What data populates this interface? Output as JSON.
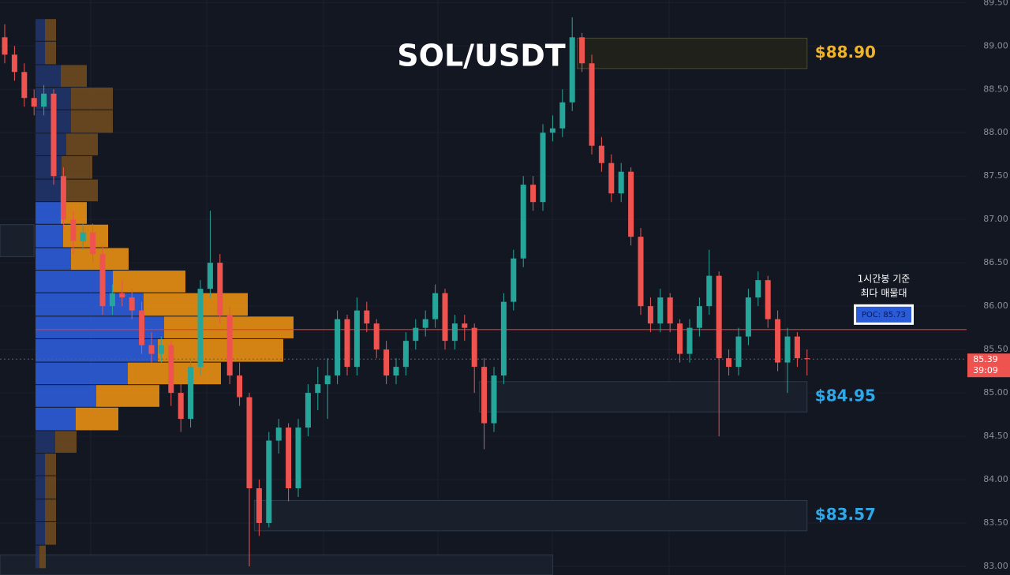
{
  "chart_data": {
    "type": "candlestick",
    "title": "SOL/USDT",
    "ylim": [
      82.9,
      89.53
    ],
    "yticks": [
      {
        "value": 83,
        "label": "83.00"
      },
      {
        "value": 83.5,
        "label": "83.50"
      },
      {
        "value": 84,
        "label": "84.00"
      },
      {
        "value": 84.5,
        "label": "84.50"
      },
      {
        "value": 85,
        "label": "85.00"
      },
      {
        "value": 85.5,
        "label": "85.50"
      },
      {
        "value": 86,
        "label": "86.00"
      },
      {
        "value": 86.5,
        "label": "86.50"
      },
      {
        "value": 87,
        "label": "87.00"
      },
      {
        "value": 87.5,
        "label": "87.50"
      },
      {
        "value": 88,
        "label": "88.00"
      },
      {
        "value": 88.5,
        "label": "88.50"
      },
      {
        "value": 89,
        "label": "89.00"
      },
      {
        "value": 89.5,
        "label": "89.50"
      }
    ],
    "grid": true,
    "up_color": "#26a69a",
    "down_color": "#ef5350",
    "ohlc": [
      [
        89.1,
        89.25,
        88.8,
        88.9
      ],
      [
        88.9,
        89.0,
        88.6,
        88.7
      ],
      [
        88.7,
        88.8,
        88.3,
        88.4
      ],
      [
        88.4,
        88.5,
        88.2,
        88.3
      ],
      [
        88.3,
        88.55,
        88.2,
        88.45
      ],
      [
        88.45,
        88.5,
        87.4,
        87.5
      ],
      [
        87.5,
        87.6,
        86.9,
        87.0
      ],
      [
        87.0,
        87.1,
        86.6,
        86.75
      ],
      [
        86.75,
        86.95,
        86.65,
        86.85
      ],
      [
        86.85,
        86.95,
        86.5,
        86.6
      ],
      [
        86.6,
        86.7,
        85.9,
        86.0
      ],
      [
        86.0,
        86.25,
        85.9,
        86.15
      ],
      [
        86.15,
        86.3,
        86.0,
        86.1
      ],
      [
        86.1,
        86.2,
        85.85,
        85.95
      ],
      [
        85.95,
        86.05,
        85.45,
        85.55
      ],
      [
        85.55,
        85.7,
        85.35,
        85.45
      ],
      [
        85.45,
        85.65,
        85.35,
        85.55
      ],
      [
        85.55,
        85.6,
        84.85,
        85.0
      ],
      [
        85.0,
        85.1,
        84.55,
        84.7
      ],
      [
        84.7,
        85.4,
        84.6,
        85.3
      ],
      [
        85.3,
        86.3,
        85.2,
        86.2
      ],
      [
        86.2,
        87.1,
        86.1,
        86.5
      ],
      [
        86.5,
        86.6,
        85.8,
        85.9
      ],
      [
        85.9,
        86.0,
        85.1,
        85.2
      ],
      [
        85.2,
        85.35,
        84.85,
        84.95
      ],
      [
        84.95,
        85.0,
        83.0,
        83.9
      ],
      [
        83.9,
        84.0,
        83.35,
        83.5
      ],
      [
        83.5,
        84.55,
        83.45,
        84.45
      ],
      [
        84.45,
        84.7,
        84.3,
        84.6
      ],
      [
        84.6,
        84.65,
        83.75,
        83.9
      ],
      [
        83.9,
        84.7,
        83.8,
        84.6
      ],
      [
        84.6,
        85.1,
        84.5,
        85.0
      ],
      [
        85.0,
        85.3,
        84.8,
        85.1
      ],
      [
        85.1,
        85.4,
        84.7,
        85.2
      ],
      [
        85.2,
        85.95,
        85.1,
        85.85
      ],
      [
        85.85,
        85.9,
        85.2,
        85.3
      ],
      [
        85.3,
        86.1,
        85.2,
        85.95
      ],
      [
        85.95,
        86.05,
        85.7,
        85.8
      ],
      [
        85.8,
        85.85,
        85.4,
        85.5
      ],
      [
        85.5,
        85.6,
        85.1,
        85.2
      ],
      [
        85.2,
        85.4,
        85.1,
        85.3
      ],
      [
        85.3,
        85.7,
        85.2,
        85.6
      ],
      [
        85.6,
        85.85,
        85.5,
        85.75
      ],
      [
        85.75,
        85.95,
        85.65,
        85.85
      ],
      [
        85.85,
        86.25,
        85.75,
        86.15
      ],
      [
        86.15,
        86.2,
        85.5,
        85.6
      ],
      [
        85.6,
        85.9,
        85.5,
        85.8
      ],
      [
        85.8,
        85.9,
        85.6,
        85.75
      ],
      [
        85.75,
        85.8,
        85.0,
        85.3
      ],
      [
        85.3,
        85.4,
        84.35,
        84.65
      ],
      [
        84.65,
        85.3,
        84.55,
        85.2
      ],
      [
        85.2,
        86.15,
        85.1,
        86.05
      ],
      [
        86.05,
        86.65,
        85.95,
        86.55
      ],
      [
        86.55,
        87.5,
        86.45,
        87.4
      ],
      [
        87.4,
        87.5,
        87.1,
        87.2
      ],
      [
        87.2,
        88.1,
        87.1,
        88.0
      ],
      [
        88.0,
        88.2,
        87.9,
        88.05
      ],
      [
        88.05,
        88.5,
        87.95,
        88.35
      ],
      [
        88.35,
        89.33,
        88.25,
        89.1
      ],
      [
        89.1,
        89.15,
        88.7,
        88.8
      ],
      [
        88.8,
        88.9,
        87.75,
        87.85
      ],
      [
        87.85,
        87.95,
        87.55,
        87.65
      ],
      [
        87.65,
        87.75,
        87.2,
        87.3
      ],
      [
        87.3,
        87.65,
        87.2,
        87.55
      ],
      [
        87.55,
        87.6,
        86.7,
        86.8
      ],
      [
        86.8,
        86.9,
        85.9,
        86.0
      ],
      [
        86.0,
        86.1,
        85.7,
        85.8
      ],
      [
        85.8,
        86.2,
        85.7,
        86.1
      ],
      [
        86.1,
        86.15,
        85.7,
        85.8
      ],
      [
        85.8,
        85.85,
        85.35,
        85.45
      ],
      [
        85.45,
        85.85,
        85.35,
        85.75
      ],
      [
        85.75,
        86.1,
        85.65,
        86.0
      ],
      [
        86.0,
        86.65,
        85.9,
        86.35
      ],
      [
        86.35,
        86.4,
        84.5,
        85.4
      ],
      [
        85.4,
        85.5,
        85.2,
        85.3
      ],
      [
        85.3,
        85.75,
        85.2,
        85.65
      ],
      [
        85.65,
        86.2,
        85.55,
        86.1
      ],
      [
        86.1,
        86.4,
        86.0,
        86.3
      ],
      [
        86.3,
        86.35,
        85.75,
        85.85
      ],
      [
        85.85,
        85.95,
        85.25,
        85.35
      ],
      [
        85.35,
        85.75,
        85.0,
        85.65
      ],
      [
        85.65,
        85.7,
        85.3,
        85.4
      ],
      [
        85.4,
        85.5,
        85.2,
        85.39
      ]
    ],
    "volume_profile": {
      "levels": [
        89.31,
        89.05,
        88.78,
        88.52,
        88.26,
        87.99,
        87.73,
        87.46,
        87.2,
        86.94,
        86.67,
        86.41,
        86.15,
        85.88,
        85.62,
        85.35,
        85.09,
        84.83,
        84.56,
        84.3,
        84.04,
        83.77,
        83.51,
        83.24
      ],
      "buy": [
        12,
        12,
        32,
        45,
        45,
        39,
        33,
        37,
        32,
        35,
        45,
        98,
        137,
        163,
        155,
        117,
        77,
        51,
        25,
        12,
        12,
        12,
        12,
        5
      ],
      "sell": [
        14,
        14,
        33,
        53,
        53,
        40,
        39,
        42,
        33,
        57,
        73,
        92,
        132,
        164,
        159,
        118,
        80,
        54,
        27,
        14,
        14,
        14,
        14,
        8
      ],
      "value_area_rows": [
        8,
        17
      ],
      "buy_color": "#2b5bd6",
      "sell_color": "#e38d12",
      "dim_buy_color": "#1f3468",
      "dim_sell_color": "#6b4a1f"
    },
    "zones": [
      {
        "top": 89.09,
        "bottom": 88.74,
        "start": 59,
        "end": 82,
        "label": "$88.90",
        "label_color": "#f0b429",
        "fill": "#1f211a",
        "border": "#4a4a38"
      },
      {
        "top": 85.13,
        "bottom": 84.78,
        "start": 49,
        "end": 82,
        "label": "$84.95",
        "label_color": "#2ea8e8",
        "fill": "#19202c",
        "border": "#2e3a4a"
      },
      {
        "top": 83.76,
        "bottom": 83.41,
        "start": 26,
        "end": 82,
        "label": "$83.57",
        "label_color": "#2ea8e8",
        "fill": "#19202c",
        "border": "#2e3a4a"
      },
      {
        "top": 83.13,
        "bottom": 82.9,
        "start": 0,
        "end": 56,
        "fill": "#19202c",
        "border": "#2e3a4a"
      },
      {
        "top": 86.94,
        "bottom": 86.57,
        "start": 0,
        "end": 3,
        "fill": "#19202c",
        "border": "#2e3a4a"
      }
    ],
    "poc": {
      "value": 85.73,
      "label": "POC: 85.73",
      "color": "#e53935"
    },
    "annotation": [
      "1시간봉 기준",
      "최다 매물대"
    ],
    "last_price": 85.39,
    "countdown": "39:09"
  }
}
